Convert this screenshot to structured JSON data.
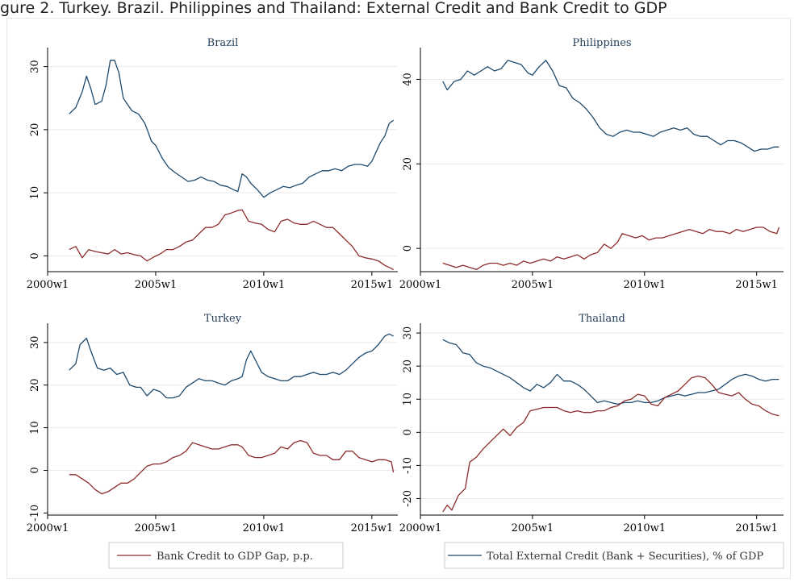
{
  "header_text": "gure 2. Turkey. Brazil. Philippines and Thailand: External Credit and Bank Credit to GDP",
  "legend": [
    {
      "label": "Bank Credit to GDP Gap, p.p.",
      "color": "#8c2c2c"
    },
    {
      "label": "Total External Credit (Bank + Securities), % of GDP",
      "color": "#1e4a6e"
    }
  ],
  "chart_data": [
    {
      "type": "line",
      "title": "Brazil",
      "xlabel": "",
      "ylabel": "",
      "xticks": [
        "2000w1",
        "2005w1",
        "2010w1",
        "2015w1"
      ],
      "xlim": [
        2000,
        2016.2
      ],
      "yticks": [
        0,
        10,
        20,
        30
      ],
      "ylim": [
        -2.5,
        32
      ],
      "series": [
        {
          "name": "Total External Credit (Bank + Securities), % of GDP",
          "color": "#1e4a6e",
          "x": [
            2001.0,
            2001.3,
            2001.6,
            2001.8,
            2002.0,
            2002.2,
            2002.5,
            2002.7,
            2002.9,
            2003.1,
            2003.3,
            2003.5,
            2003.7,
            2003.9,
            2004.2,
            2004.5,
            2004.8,
            2005.0,
            2005.3,
            2005.6,
            2005.9,
            2006.2,
            2006.5,
            2006.8,
            2007.1,
            2007.4,
            2007.7,
            2008.0,
            2008.3,
            2008.6,
            2008.8,
            2009.0,
            2009.2,
            2009.4,
            2009.7,
            2010.0,
            2010.3,
            2010.6,
            2010.9,
            2011.2,
            2011.5,
            2011.8,
            2012.1,
            2012.4,
            2012.7,
            2013.0,
            2013.3,
            2013.6,
            2013.9,
            2014.2,
            2014.5,
            2014.8,
            2015.0,
            2015.2,
            2015.4,
            2015.6,
            2015.8,
            2016.0
          ],
          "y": [
            22.5,
            23.5,
            26,
            28.5,
            26.5,
            24,
            24.5,
            27,
            31,
            31,
            29,
            25,
            24,
            23,
            22.5,
            21,
            18.2,
            17.5,
            15.5,
            14,
            13.2,
            12.5,
            11.8,
            12,
            12.5,
            12,
            11.8,
            11.2,
            11,
            10.5,
            10.2,
            13,
            12.5,
            11.5,
            10.5,
            9.3,
            10,
            10.5,
            11,
            10.8,
            11.2,
            11.5,
            12.5,
            13,
            13.5,
            13.5,
            13.8,
            13.5,
            14.2,
            14.5,
            14.5,
            14.2,
            15,
            16.5,
            18,
            19,
            21,
            21.5
          ]
        },
        {
          "name": "Bank Credit to GDP Gap, p.p.",
          "color": "#8c2c2c",
          "x": [
            2001.0,
            2001.3,
            2001.6,
            2001.9,
            2002.2,
            2002.5,
            2002.8,
            2003.1,
            2003.4,
            2003.7,
            2004.0,
            2004.3,
            2004.6,
            2004.9,
            2005.2,
            2005.5,
            2005.8,
            2006.1,
            2006.4,
            2006.7,
            2007.0,
            2007.3,
            2007.6,
            2007.9,
            2008.2,
            2008.5,
            2008.8,
            2009.0,
            2009.3,
            2009.6,
            2009.9,
            2010.2,
            2010.5,
            2010.8,
            2011.1,
            2011.4,
            2011.7,
            2012.0,
            2012.3,
            2012.6,
            2012.9,
            2013.2,
            2013.5,
            2013.8,
            2014.1,
            2014.4,
            2014.7,
            2015.0,
            2015.3,
            2015.6,
            2015.9,
            2016.0
          ],
          "y": [
            1,
            1.5,
            -0.3,
            1,
            0.7,
            0.5,
            0.3,
            1,
            0.3,
            0.5,
            0.2,
            0,
            -0.8,
            -0.2,
            0.3,
            1,
            1,
            1.5,
            2.2,
            2.5,
            3.5,
            4.5,
            4.5,
            5,
            6.5,
            6.8,
            7.2,
            7.3,
            5.5,
            5.2,
            5,
            4.2,
            3.8,
            5.5,
            5.8,
            5.2,
            5,
            5,
            5.5,
            5,
            4.5,
            4.5,
            3.5,
            2.5,
            1.5,
            0,
            -0.3,
            -0.5,
            -0.8,
            -1.5,
            -2,
            -2.2
          ]
        }
      ]
    },
    {
      "type": "line",
      "title": "Philippines",
      "xlabel": "",
      "ylabel": "",
      "xticks": [
        "2000w1",
        "2005w1",
        "2010w1",
        "2015w1"
      ],
      "xlim": [
        2000,
        2016.2
      ],
      "yticks": [
        0,
        20,
        40
      ],
      "ylim": [
        -5.5,
        46
      ],
      "series": [
        {
          "name": "Total External Credit (Bank + Securities), % of GDP",
          "color": "#1e4a6e",
          "x": [
            2001.0,
            2001.2,
            2001.5,
            2001.8,
            2002.1,
            2002.4,
            2002.7,
            2003.0,
            2003.3,
            2003.6,
            2003.9,
            2004.2,
            2004.5,
            2004.8,
            2005.0,
            2005.3,
            2005.6,
            2005.9,
            2006.2,
            2006.5,
            2006.8,
            2007.1,
            2007.4,
            2007.7,
            2008.0,
            2008.3,
            2008.6,
            2008.9,
            2009.2,
            2009.5,
            2009.8,
            2010.1,
            2010.4,
            2010.7,
            2011.0,
            2011.3,
            2011.6,
            2011.9,
            2012.2,
            2012.5,
            2012.8,
            2013.1,
            2013.4,
            2013.7,
            2014.0,
            2014.3,
            2014.6,
            2014.9,
            2015.2,
            2015.5,
            2015.8,
            2016.0
          ],
          "y": [
            39.5,
            37.5,
            39.5,
            40,
            42,
            41,
            42,
            43,
            42,
            42.5,
            44.5,
            44,
            43.5,
            41.5,
            41,
            43,
            44.5,
            42,
            38.5,
            38,
            35.5,
            34.5,
            33,
            31,
            28.5,
            27,
            26.5,
            27.5,
            28,
            27.5,
            27.5,
            27,
            26.5,
            27.5,
            28,
            28.5,
            28,
            28.5,
            27,
            26.5,
            26.5,
            25.5,
            24.5,
            25.5,
            25.5,
            25,
            24,
            23,
            23.5,
            23.5,
            24,
            24
          ]
        },
        {
          "name": "Bank Credit to GDP Gap, p.p.",
          "color": "#8c2c2c",
          "x": [
            2001.0,
            2001.3,
            2001.6,
            2001.9,
            2002.2,
            2002.5,
            2002.8,
            2003.1,
            2003.4,
            2003.7,
            2004.0,
            2004.3,
            2004.6,
            2004.9,
            2005.2,
            2005.5,
            2005.8,
            2006.1,
            2006.4,
            2006.7,
            2007.0,
            2007.3,
            2007.6,
            2007.9,
            2008.2,
            2008.5,
            2008.8,
            2009.0,
            2009.3,
            2009.6,
            2009.9,
            2010.2,
            2010.5,
            2010.8,
            2011.1,
            2011.4,
            2011.7,
            2012.0,
            2012.3,
            2012.6,
            2012.9,
            2013.2,
            2013.5,
            2013.8,
            2014.1,
            2014.4,
            2014.7,
            2015.0,
            2015.3,
            2015.6,
            2015.9,
            2016.0
          ],
          "y": [
            -3.5,
            -4,
            -4.5,
            -4,
            -4.5,
            -5,
            -4,
            -3.5,
            -3.5,
            -4,
            -3.5,
            -4,
            -3,
            -3.5,
            -3,
            -2.5,
            -3,
            -2,
            -2.5,
            -2,
            -1.5,
            -2.5,
            -1.5,
            -1,
            1,
            0,
            1.5,
            3.5,
            3,
            2.5,
            3,
            2,
            2.5,
            2.5,
            3,
            3.5,
            4,
            4.5,
            4,
            3.5,
            4.5,
            4,
            4,
            3.5,
            4.5,
            4,
            4.5,
            5,
            5,
            4,
            3.5,
            5
          ]
        }
      ]
    },
    {
      "type": "line",
      "title": "Turkey",
      "xlabel": "",
      "ylabel": "",
      "xticks": [
        "2000w1",
        "2005w1",
        "2010w1",
        "2015w1"
      ],
      "xlim": [
        2000,
        2016.2
      ],
      "yticks": [
        -10,
        0,
        10,
        20,
        30
      ],
      "ylim": [
        -10.5,
        33
      ],
      "series": [
        {
          "name": "Total External Credit (Bank + Securities), % of GDP",
          "color": "#1e4a6e",
          "x": [
            2001.0,
            2001.3,
            2001.5,
            2001.8,
            2002.0,
            2002.3,
            2002.6,
            2002.9,
            2003.2,
            2003.5,
            2003.8,
            2004.1,
            2004.3,
            2004.6,
            2004.9,
            2005.2,
            2005.5,
            2005.8,
            2006.1,
            2006.4,
            2006.7,
            2007.0,
            2007.3,
            2007.6,
            2007.9,
            2008.2,
            2008.5,
            2008.8,
            2009.0,
            2009.2,
            2009.4,
            2009.6,
            2009.9,
            2010.2,
            2010.5,
            2010.8,
            2011.1,
            2011.4,
            2011.7,
            2012.0,
            2012.3,
            2012.6,
            2012.9,
            2013.2,
            2013.5,
            2013.8,
            2014.1,
            2014.4,
            2014.7,
            2015.0,
            2015.3,
            2015.6,
            2015.8,
            2016.0
          ],
          "y": [
            23.5,
            25,
            29.5,
            31,
            28,
            24,
            23.5,
            24,
            22.5,
            23,
            20,
            19.5,
            19.5,
            17.5,
            19,
            18.5,
            17,
            17,
            17.5,
            19.5,
            20.5,
            21.5,
            21,
            21,
            20.5,
            20,
            21,
            21.5,
            22,
            26,
            28,
            26,
            23,
            22,
            21.5,
            21,
            21,
            22,
            22,
            22.5,
            23,
            22.5,
            22.5,
            23,
            22.5,
            23.5,
            25,
            26.5,
            27.5,
            28,
            29.5,
            31.5,
            32,
            31.5
          ]
        },
        {
          "name": "Bank Credit to GDP Gap, p.p.",
          "color": "#8c2c2c",
          "x": [
            2001.0,
            2001.3,
            2001.6,
            2001.9,
            2002.2,
            2002.5,
            2002.8,
            2003.1,
            2003.4,
            2003.7,
            2004.0,
            2004.3,
            2004.6,
            2004.9,
            2005.2,
            2005.5,
            2005.8,
            2006.1,
            2006.4,
            2006.7,
            2007.0,
            2007.3,
            2007.6,
            2007.9,
            2008.2,
            2008.5,
            2008.8,
            2009.0,
            2009.3,
            2009.6,
            2009.9,
            2010.2,
            2010.5,
            2010.8,
            2011.1,
            2011.4,
            2011.7,
            2012.0,
            2012.3,
            2012.6,
            2012.9,
            2013.2,
            2013.5,
            2013.8,
            2014.1,
            2014.4,
            2014.7,
            2015.0,
            2015.3,
            2015.6,
            2015.9,
            2016.0
          ],
          "y": [
            -1,
            -1,
            -2,
            -3,
            -4.5,
            -5.5,
            -5,
            -4,
            -3,
            -3,
            -2,
            -0.5,
            1,
            1.5,
            1.5,
            2,
            3,
            3.5,
            4.5,
            6.5,
            6,
            5.5,
            5,
            5,
            5.5,
            6,
            6,
            5.5,
            3.5,
            3,
            3,
            3.5,
            4,
            5.5,
            5,
            6.5,
            7,
            6.5,
            4,
            3.5,
            3.5,
            2.5,
            2.5,
            4.5,
            4.5,
            3,
            2.5,
            2,
            2.5,
            2.5,
            2,
            -0.5
          ]
        }
      ]
    },
    {
      "type": "line",
      "title": "Thailand",
      "xlabel": "",
      "ylabel": "",
      "xticks": [
        "2000w1",
        "2005w1",
        "2010w1",
        "2015w1"
      ],
      "xlim": [
        2000,
        2016.2
      ],
      "yticks": [
        -20,
        -10,
        0,
        10,
        20,
        30
      ],
      "ylim": [
        -25,
        31
      ],
      "series": [
        {
          "name": "Total External Credit (Bank + Securities), % of GDP",
          "color": "#1e4a6e",
          "x": [
            2001.0,
            2001.3,
            2001.6,
            2001.9,
            2002.2,
            2002.5,
            2002.8,
            2003.1,
            2003.4,
            2003.7,
            2004.0,
            2004.3,
            2004.6,
            2004.9,
            2005.2,
            2005.5,
            2005.8,
            2006.1,
            2006.4,
            2006.7,
            2007.0,
            2007.3,
            2007.6,
            2007.9,
            2008.2,
            2008.5,
            2008.8,
            2009.1,
            2009.4,
            2009.7,
            2010.0,
            2010.3,
            2010.6,
            2010.9,
            2011.2,
            2011.5,
            2011.8,
            2012.1,
            2012.4,
            2012.7,
            2013.0,
            2013.3,
            2013.6,
            2013.9,
            2014.2,
            2014.5,
            2014.8,
            2015.1,
            2015.4,
            2015.7,
            2016.0
          ],
          "y": [
            28,
            27,
            26.5,
            24,
            23.5,
            21,
            20,
            19.5,
            18.5,
            17.5,
            16.5,
            15,
            13.5,
            12.5,
            14.5,
            13.5,
            15,
            17.5,
            15.5,
            15.5,
            14.5,
            13,
            11,
            9,
            9.5,
            9,
            8.5,
            9,
            9,
            9.5,
            9,
            9,
            9.5,
            10.5,
            11,
            11.5,
            11,
            11.5,
            12,
            12,
            12.5,
            13,
            14.5,
            16,
            17,
            17.5,
            17,
            16,
            15.5,
            16,
            16
          ]
        },
        {
          "name": "Bank Credit to GDP Gap, p.p.",
          "color": "#8c2c2c",
          "x": [
            2001.0,
            2001.2,
            2001.4,
            2001.7,
            2002.0,
            2002.2,
            2002.5,
            2002.8,
            2003.1,
            2003.4,
            2003.7,
            2004.0,
            2004.3,
            2004.6,
            2004.9,
            2005.2,
            2005.5,
            2005.8,
            2006.1,
            2006.4,
            2006.7,
            2007.0,
            2007.3,
            2007.6,
            2007.9,
            2008.2,
            2008.5,
            2008.8,
            2009.1,
            2009.4,
            2009.7,
            2010.0,
            2010.3,
            2010.6,
            2010.9,
            2011.2,
            2011.5,
            2011.8,
            2012.1,
            2012.4,
            2012.7,
            2013.0,
            2013.3,
            2013.6,
            2013.9,
            2014.2,
            2014.5,
            2014.8,
            2015.1,
            2015.4,
            2015.7,
            2016.0
          ],
          "y": [
            -24,
            -22,
            -23.5,
            -19,
            -17,
            -9,
            -7.5,
            -5,
            -3,
            -1,
            1,
            -1,
            1.5,
            3,
            6.5,
            7,
            7.5,
            7.5,
            7.5,
            6.5,
            6,
            6.5,
            6,
            6,
            6.5,
            6.5,
            7.5,
            8,
            9.5,
            10,
            11.5,
            11,
            8.5,
            8,
            10.5,
            11.5,
            12.5,
            14.5,
            16.5,
            17,
            16.5,
            14.5,
            12,
            11.5,
            11,
            12,
            10,
            8.5,
            8,
            6.5,
            5.5,
            5
          ]
        }
      ]
    }
  ]
}
